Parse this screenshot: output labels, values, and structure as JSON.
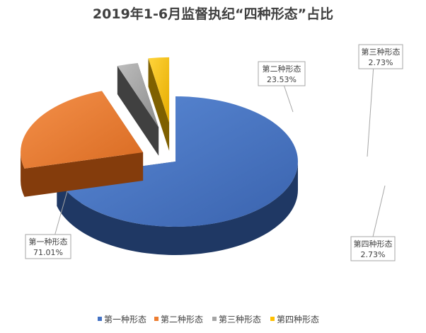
{
  "chart_data": {
    "type": "pie",
    "style": "3d-exploded",
    "title": "2019年1-6月监督执纪“四种形态”占比",
    "legend_position": "bottom",
    "slices": [
      {
        "name": "第一种形态",
        "value": 71.01,
        "label": "71.01%",
        "color": "#4472C4",
        "dark": "#1F3864"
      },
      {
        "name": "第二种形态",
        "value": 23.53,
        "label": "23.53%",
        "color": "#ED7D31",
        "dark": "#843C0C"
      },
      {
        "name": "第三种形态",
        "value": 2.73,
        "label": "2.73%",
        "color": "#A5A5A5",
        "dark": "#404040"
      },
      {
        "name": "第四种形态",
        "value": 2.73,
        "label": "2.73%",
        "color": "#FFC000",
        "dark": "#7F6000"
      }
    ]
  }
}
